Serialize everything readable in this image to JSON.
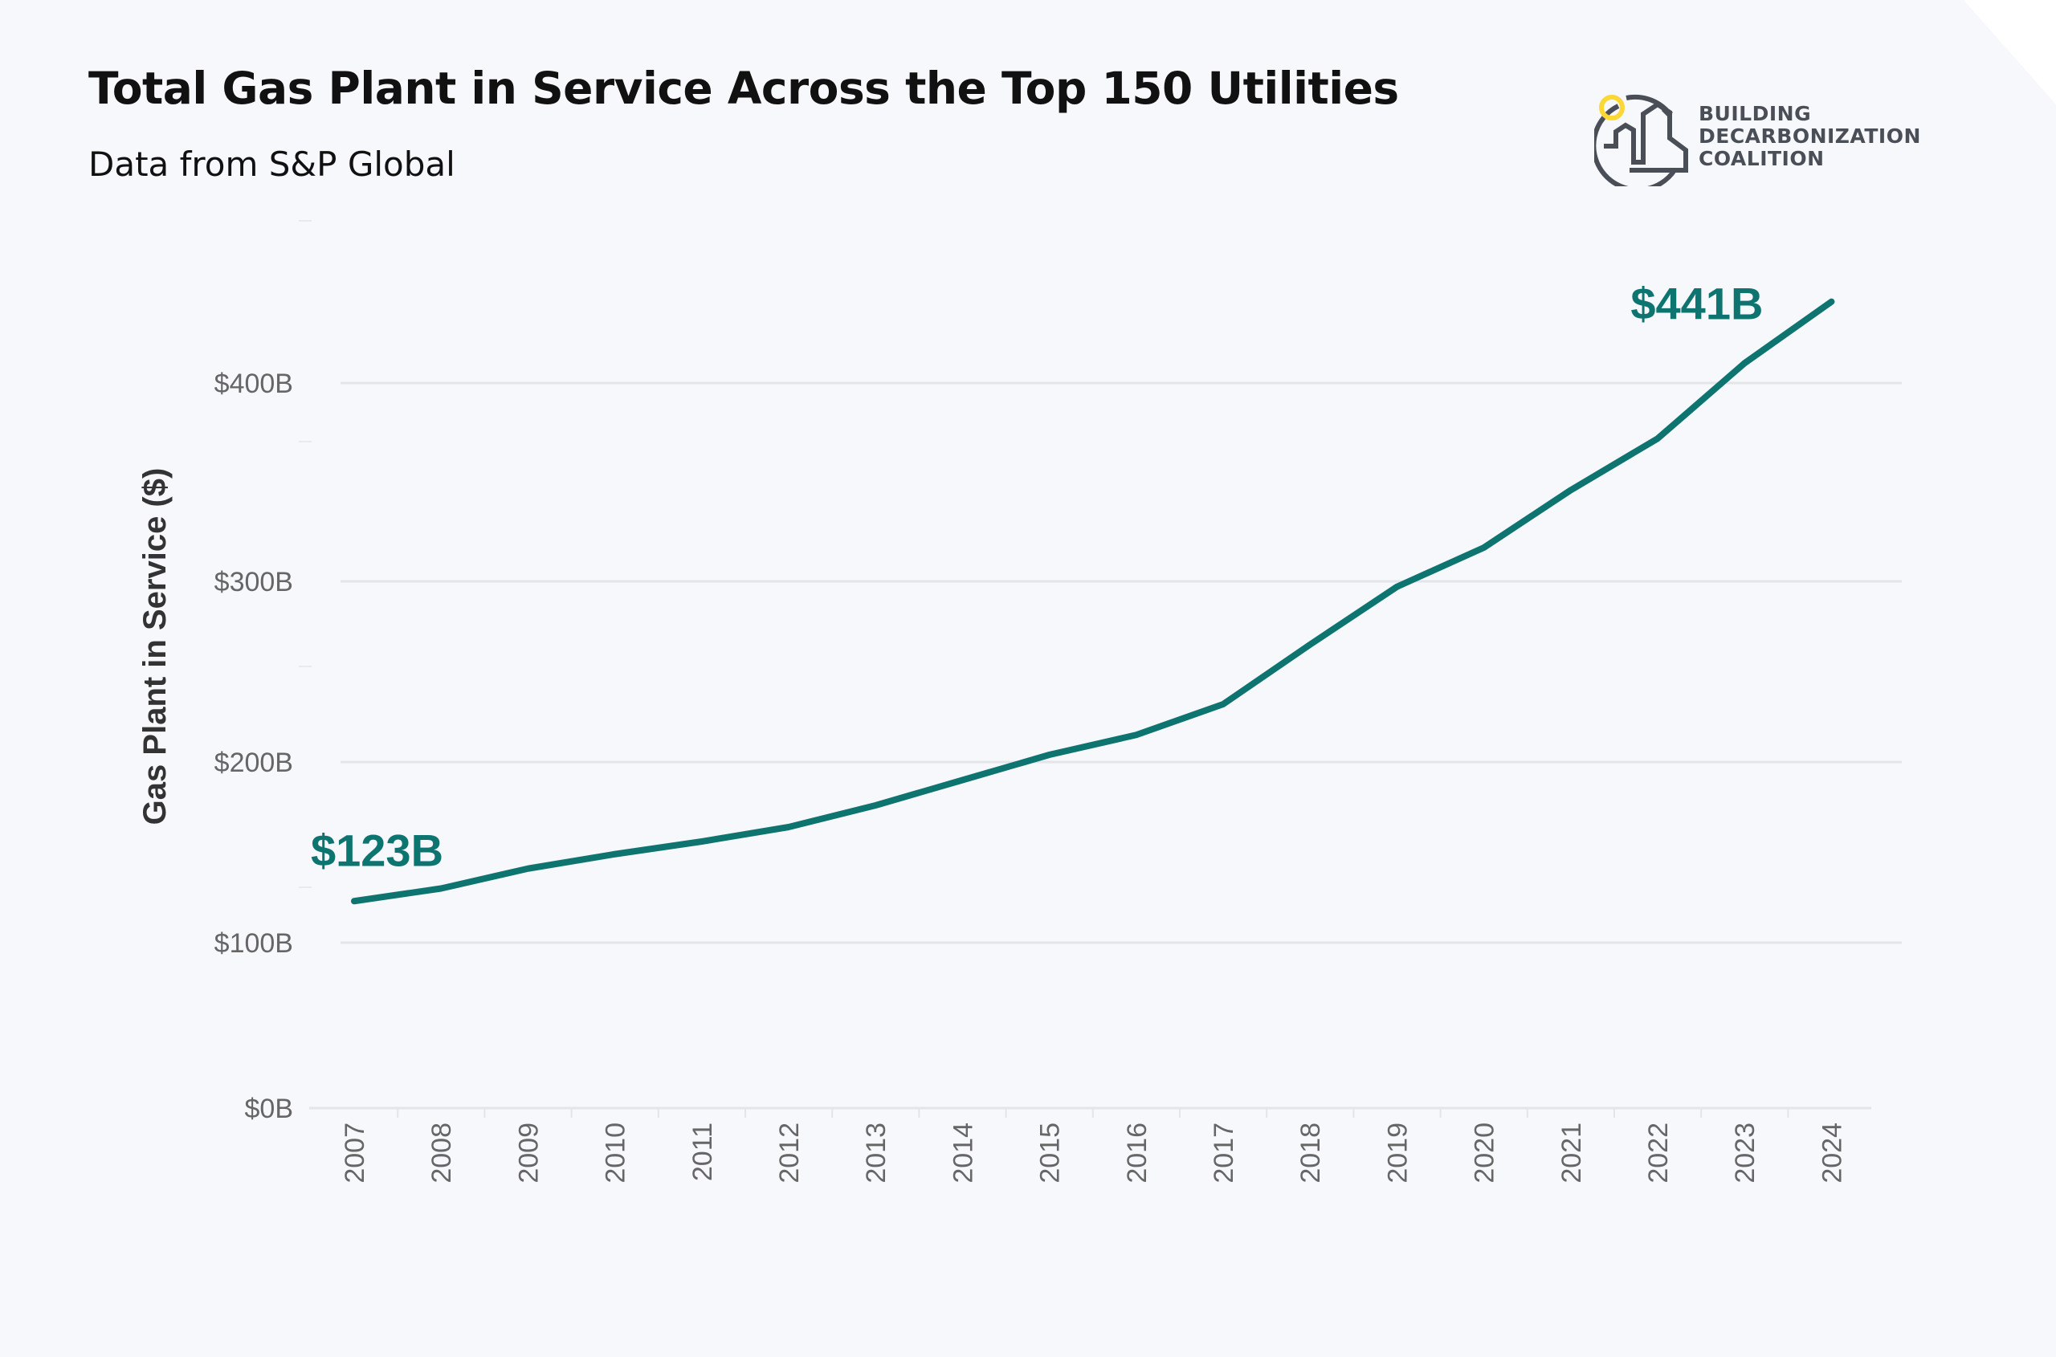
{
  "header": {
    "title": "Total Gas Plant in Service Across the Top 150 Utilities",
    "subtitle": "Data from S&P Global"
  },
  "logo": {
    "lines": [
      "BUILDING",
      "DECARBONIZATION",
      "COALITION"
    ],
    "colors": {
      "ring": "#4a4e57",
      "bulb": "#fdd835"
    }
  },
  "chart_data": {
    "type": "line",
    "title": "Total Gas Plant in Service Across the Top 150 Utilities",
    "subtitle": "Data from S&P Global",
    "xlabel": "",
    "ylabel": "Gas Plant in Service ($)",
    "x": [
      "2007",
      "2008",
      "2009",
      "2010",
      "2011",
      "2012",
      "2013",
      "2014",
      "2015",
      "2016",
      "2017",
      "2018",
      "2019",
      "2020",
      "2021",
      "2022",
      "2023",
      "2024"
    ],
    "series": [
      {
        "values": [
          123,
          130,
          141,
          149,
          156,
          164,
          176,
          190,
          204,
          215,
          232,
          265,
          297,
          317,
          346,
          372,
          410,
          441
        ],
        "color": "#0e7470"
      }
    ],
    "y_ticks": [
      0,
      100,
      200,
      300,
      400
    ],
    "y_tick_labels": [
      "$0B",
      "$100B",
      "$200B",
      "$300B",
      "$400B"
    ],
    "annotations": [
      {
        "x": "2007",
        "value": 123,
        "label": "$123B"
      },
      {
        "x": "2024",
        "value": 441,
        "label": "$441B"
      }
    ],
    "grid": true,
    "legend": "none",
    "colors": {
      "line": "#0e7470",
      "grid": "#e3e5e9",
      "tick_label": "#666666"
    }
  }
}
